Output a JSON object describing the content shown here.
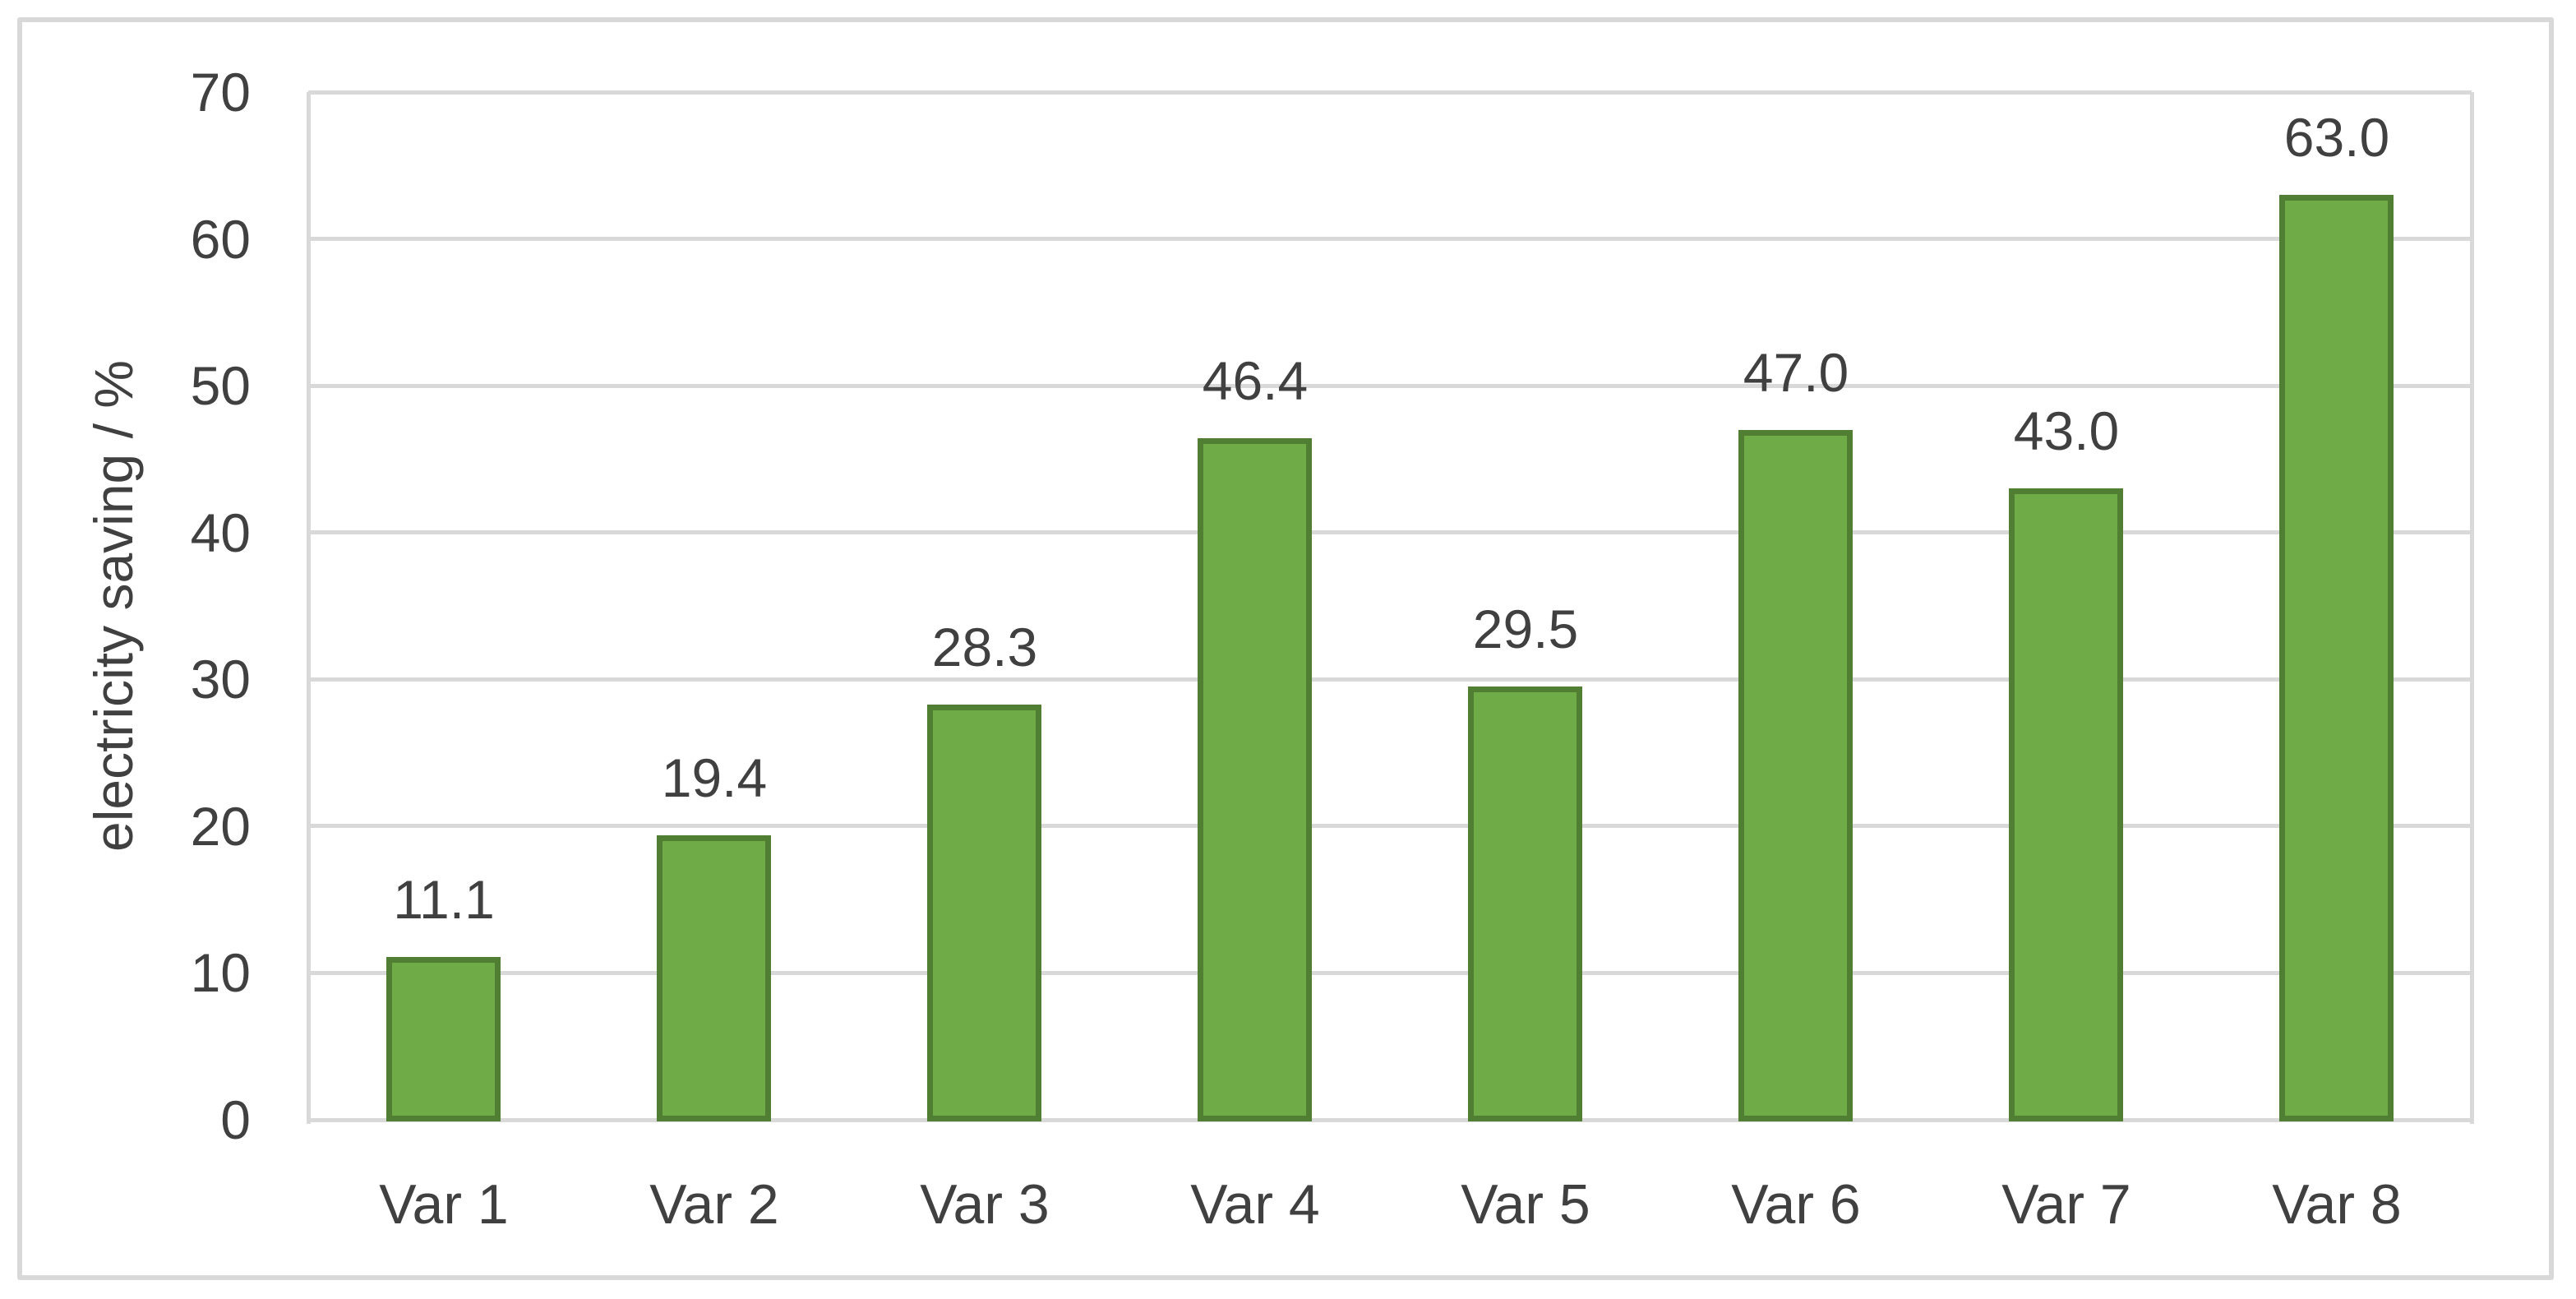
{
  "chart_data": {
    "type": "bar",
    "title": "",
    "categories": [
      "Var 1",
      "Var 2",
      "Var 3",
      "Var 4",
      "Var 5",
      "Var 6",
      "Var 7",
      "Var 8"
    ],
    "values": [
      11.1,
      19.4,
      28.3,
      46.4,
      29.5,
      47.0,
      43.0,
      63.0
    ],
    "value_labels": [
      "11.1",
      "19.4",
      "28.3",
      "46.4",
      "29.5",
      "47.0",
      "43.0",
      "63.0"
    ],
    "xlabel": "",
    "ylabel": "electricity saving / %",
    "ylim": [
      0,
      70
    ],
    "ytick_step": 10,
    "yticks": [
      0,
      10,
      20,
      30,
      40,
      50,
      60,
      70
    ],
    "ytick_labels": [
      "0",
      "10",
      "20",
      "30",
      "40",
      "50",
      "60",
      "70"
    ],
    "grid": "horizontal",
    "legend": "none",
    "colors": {
      "bar_fill": "#6FAC47",
      "bar_border": "#507E32",
      "gridline": "#D9D9D9",
      "axis_line": "#D9D9D9",
      "figure_border": "#D9D9D9",
      "text": "#404040",
      "background": "#FFFFFF"
    }
  }
}
